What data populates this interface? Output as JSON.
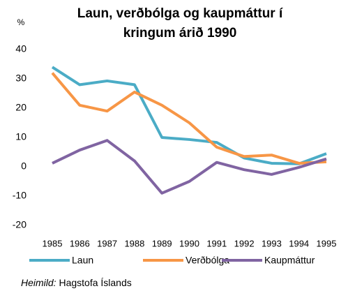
{
  "chart_data": {
    "type": "line",
    "title": [
      "Laun, verðbólga og kaupmáttur í",
      "kringum árið 1990"
    ],
    "y_label": "%",
    "categories": [
      "1985",
      "1986",
      "1987",
      "1988",
      "1989",
      "1990",
      "1991",
      "1992",
      "1993",
      "1994",
      "1995"
    ],
    "series": [
      {
        "name": "Laun",
        "color": "#4bacc6",
        "values": [
          34,
          28,
          29.3,
          28,
          10,
          9.3,
          8.3,
          3,
          1.2,
          1,
          4.5
        ]
      },
      {
        "name": "Verðbólga",
        "color": "#f79646",
        "values": [
          32,
          21,
          19,
          25.5,
          21,
          15,
          6.7,
          3.5,
          4,
          1.2,
          1.7
        ]
      },
      {
        "name": "Kaupmáttur",
        "color": "#8064a2",
        "values": [
          1.2,
          5.7,
          9,
          2,
          -9,
          -5,
          1.5,
          -1,
          -2.6,
          -0.2,
          2.7
        ]
      }
    ],
    "ylim": [
      -20,
      40
    ],
    "yticks": [
      -20,
      -10,
      0,
      10,
      20,
      30,
      40
    ],
    "grid": false,
    "legend": "bottom",
    "source_label": "Heimild:",
    "source": "Hagstofa Íslands"
  }
}
